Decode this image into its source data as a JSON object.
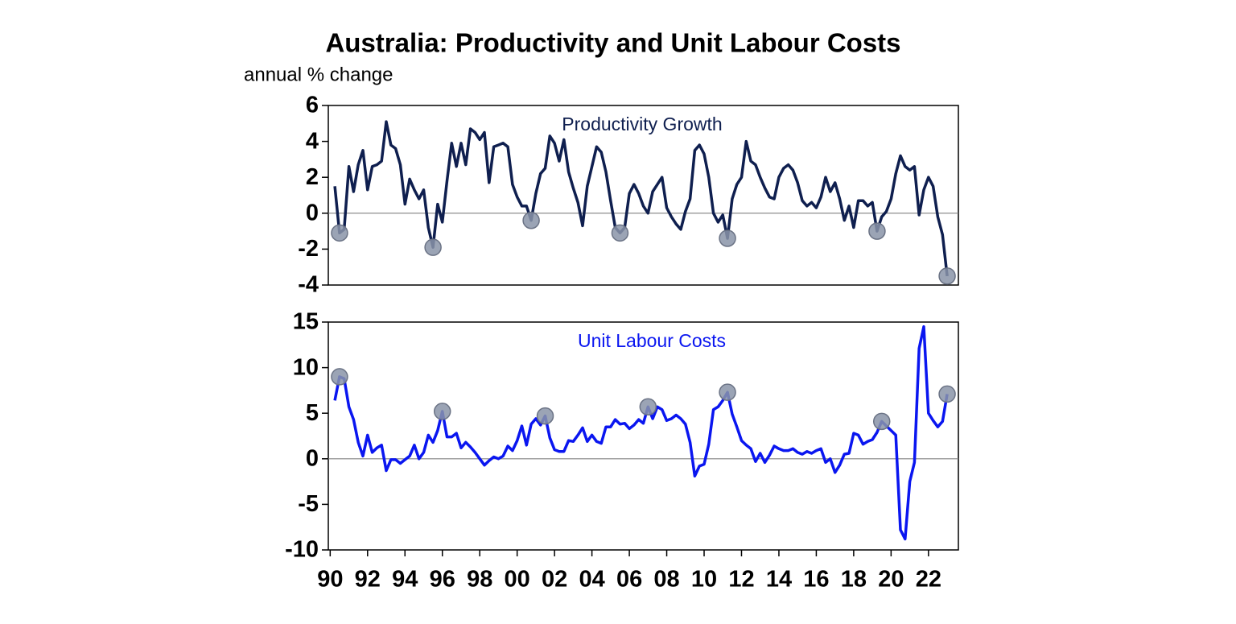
{
  "title": "Australia: Productivity and Unit Labour Costs",
  "subtitle": "annual % change",
  "chart_data": [
    {
      "type": "line",
      "annotation": "Productivity Growth",
      "xlim": [
        1989.9,
        2023.6
      ],
      "ylim": [
        -4,
        6
      ],
      "yticks": [
        -4,
        -2,
        0,
        2,
        4,
        6
      ],
      "zero_line": true,
      "x": [
        1990.25,
        1990.5,
        1990.75,
        1991,
        1991.25,
        1991.5,
        1991.75,
        1992,
        1992.25,
        1992.5,
        1992.75,
        1993,
        1993.25,
        1993.5,
        1993.75,
        1994,
        1994.25,
        1994.5,
        1994.75,
        1995,
        1995.25,
        1995.5,
        1995.75,
        1996,
        1996.25,
        1996.5,
        1996.75,
        1997,
        1997.25,
        1997.5,
        1997.75,
        1998,
        1998.25,
        1998.5,
        1998.75,
        1999,
        1999.25,
        1999.5,
        1999.75,
        2000,
        2000.25,
        2000.5,
        2000.75,
        2001,
        2001.25,
        2001.5,
        2001.75,
        2002,
        2002.25,
        2002.5,
        2002.75,
        2003,
        2003.25,
        2003.5,
        2003.75,
        2004,
        2004.25,
        2004.5,
        2004.75,
        2005,
        2005.25,
        2005.5,
        2005.75,
        2006,
        2006.25,
        2006.5,
        2006.75,
        2007,
        2007.25,
        2007.5,
        2007.75,
        2008,
        2008.25,
        2008.5,
        2008.75,
        2009,
        2009.25,
        2009.5,
        2009.75,
        2010,
        2010.25,
        2010.5,
        2010.75,
        2011,
        2011.25,
        2011.5,
        2011.75,
        2012,
        2012.25,
        2012.5,
        2012.75,
        2013,
        2013.25,
        2013.5,
        2013.75,
        2014,
        2014.25,
        2014.5,
        2014.75,
        2015,
        2015.25,
        2015.5,
        2015.75,
        2016,
        2016.25,
        2016.5,
        2016.75,
        2017,
        2017.25,
        2017.5,
        2017.75,
        2018,
        2018.25,
        2018.5,
        2018.75,
        2019,
        2019.25,
        2019.5,
        2019.75,
        2020,
        2020.25,
        2020.5,
        2020.75,
        2021,
        2021.25,
        2021.5,
        2021.75,
        2022,
        2022.25,
        2022.5,
        2022.75,
        2023
      ],
      "series": [
        {
          "name": "Productivity Growth",
          "color": "#0f1f4f",
          "values": [
            1.5,
            -1.1,
            -0.9,
            2.6,
            1.2,
            2.7,
            3.5,
            1.3,
            2.6,
            2.7,
            2.9,
            5.1,
            3.8,
            3.6,
            2.7,
            0.5,
            1.9,
            1.3,
            0.8,
            1.3,
            -0.8,
            -1.9,
            0.5,
            -0.5,
            1.8,
            3.9,
            2.6,
            3.9,
            2.7,
            4.7,
            4.5,
            4.1,
            4.5,
            1.7,
            3.7,
            3.8,
            3.9,
            3.7,
            1.6,
            0.9,
            0.4,
            0.4,
            -0.4,
            1.1,
            2.2,
            2.5,
            4.3,
            3.9,
            2.9,
            4.1,
            2.3,
            1.4,
            0.6,
            -0.7,
            1.5,
            2.6,
            3.7,
            3.4,
            2.3,
            0.7,
            -0.8,
            -1.1,
            -0.8,
            1.1,
            1.6,
            1.1,
            0.4,
            0,
            1.2,
            1.6,
            2.0,
            0.3,
            -0.2,
            -0.6,
            -0.9,
            0.1,
            0.8,
            3.5,
            3.8,
            3.3,
            2.0,
            0,
            -0.5,
            -0.1,
            -1.4,
            0.8,
            1.6,
            2.0,
            4.0,
            2.9,
            2.7,
            2.0,
            1.4,
            0.9,
            0.8,
            2.0,
            2.5,
            2.7,
            2.4,
            1.7,
            0.7,
            0.4,
            0.6,
            0.3,
            0.9,
            2.0,
            1.2,
            1.7,
            0.8,
            -0.4,
            0.4,
            -0.8,
            0.7,
            0.7,
            0.4,
            0.6,
            -1.0,
            -0.2,
            0.1,
            0.8,
            2.2,
            3.2,
            2.6,
            2.4,
            2.6,
            -0.1,
            1.3,
            2.0,
            1.5,
            -0.2,
            -1.2,
            -3.5
          ]
        }
      ],
      "highlight_x": [
        1990.5,
        1995.5,
        2000.75,
        2005.5,
        2011.25,
        2019.25,
        2023
      ],
      "highlight_color": "#8a94a8"
    },
    {
      "type": "line",
      "annotation": "Unit Labour Costs",
      "xlim": [
        1989.9,
        2023.6
      ],
      "ylim": [
        -10,
        15
      ],
      "yticks": [
        -10,
        -5,
        0,
        5,
        10,
        15
      ],
      "zero_line": true,
      "xticks": [
        {
          "value": 1990,
          "label": "90"
        },
        {
          "value": 1992,
          "label": "92"
        },
        {
          "value": 1994,
          "label": "94"
        },
        {
          "value": 1996,
          "label": "96"
        },
        {
          "value": 1998,
          "label": "98"
        },
        {
          "value": 2000,
          "label": "00"
        },
        {
          "value": 2002,
          "label": "02"
        },
        {
          "value": 2004,
          "label": "04"
        },
        {
          "value": 2006,
          "label": "06"
        },
        {
          "value": 2008,
          "label": "08"
        },
        {
          "value": 2010,
          "label": "10"
        },
        {
          "value": 2012,
          "label": "12"
        },
        {
          "value": 2014,
          "label": "14"
        },
        {
          "value": 2016,
          "label": "16"
        },
        {
          "value": 2018,
          "label": "18"
        },
        {
          "value": 2020,
          "label": "20"
        },
        {
          "value": 2022,
          "label": "22"
        }
      ],
      "x": [
        1990.25,
        1990.5,
        1990.75,
        1991,
        1991.25,
        1991.5,
        1991.75,
        1992,
        1992.25,
        1992.5,
        1992.75,
        1993,
        1993.25,
        1993.5,
        1993.75,
        1994,
        1994.25,
        1994.5,
        1994.75,
        1995,
        1995.25,
        1995.5,
        1995.75,
        1996,
        1996.25,
        1996.5,
        1996.75,
        1997,
        1997.25,
        1997.5,
        1997.75,
        1998,
        1998.25,
        1998.5,
        1998.75,
        1999,
        1999.25,
        1999.5,
        1999.75,
        2000,
        2000.25,
        2000.5,
        2000.75,
        2001,
        2001.25,
        2001.5,
        2001.75,
        2002,
        2002.25,
        2002.5,
        2002.75,
        2003,
        2003.25,
        2003.5,
        2003.75,
        2004,
        2004.25,
        2004.5,
        2004.75,
        2005,
        2005.25,
        2005.5,
        2005.75,
        2006,
        2006.25,
        2006.5,
        2006.75,
        2007,
        2007.25,
        2007.5,
        2007.75,
        2008,
        2008.25,
        2008.5,
        2008.75,
        2009,
        2009.25,
        2009.5,
        2009.75,
        2010,
        2010.25,
        2010.5,
        2010.75,
        2011,
        2011.25,
        2011.5,
        2011.75,
        2012,
        2012.25,
        2012.5,
        2012.75,
        2013,
        2013.25,
        2013.5,
        2013.75,
        2014,
        2014.25,
        2014.5,
        2014.75,
        2015,
        2015.25,
        2015.5,
        2015.75,
        2016,
        2016.25,
        2016.5,
        2016.75,
        2017,
        2017.25,
        2017.5,
        2017.75,
        2018,
        2018.25,
        2018.5,
        2018.75,
        2019,
        2019.25,
        2019.5,
        2019.75,
        2020,
        2020.25,
        2020.5,
        2020.75,
        2021,
        2021.25,
        2021.5,
        2021.75,
        2022,
        2022.25,
        2022.5,
        2022.75,
        2023
      ],
      "series": [
        {
          "name": "Unit Labour Costs",
          "color": "#0a16f0",
          "values": [
            6.4,
            9.0,
            8.8,
            5.7,
            4.3,
            1.8,
            0.3,
            2.6,
            0.7,
            1.2,
            1.5,
            -1.3,
            -0.1,
            -0.1,
            -0.5,
            -0.1,
            0.3,
            1.5,
            0,
            0.7,
            2.6,
            1.8,
            3.1,
            5.2,
            2.4,
            2.4,
            2.8,
            1.2,
            1.8,
            1.3,
            0.7,
            0,
            -0.7,
            -0.2,
            0.2,
            0,
            0.3,
            1.4,
            0.9,
            2.0,
            3.6,
            1.5,
            3.8,
            4.4,
            3.7,
            4.7,
            2.3,
            1.0,
            0.8,
            0.8,
            2.0,
            1.9,
            2.6,
            3.4,
            1.9,
            2.6,
            1.9,
            1.7,
            3.5,
            3.5,
            4.3,
            3.8,
            3.9,
            3.3,
            3.7,
            4.3,
            3.9,
            5.7,
            4.4,
            5.7,
            5.4,
            4.2,
            4.4,
            4.8,
            4.4,
            3.8,
            1.8,
            -1.9,
            -0.8,
            -0.6,
            1.6,
            5.4,
            5.7,
            6.4,
            7.3,
            4.9,
            3.5,
            2.0,
            1.5,
            1.1,
            -0.3,
            0.6,
            -0.4,
            0.4,
            1.4,
            1.1,
            0.9,
            0.9,
            1.1,
            0.7,
            0.5,
            0.8,
            0.6,
            0.9,
            1.1,
            -0.4,
            0,
            -1.5,
            -0.7,
            0.5,
            0.6,
            2.8,
            2.6,
            1.6,
            1.9,
            2.1,
            2.9,
            4.1,
            3.6,
            3.1,
            2.6,
            -7.8,
            -8.8,
            -2.5,
            -0.4,
            12.1,
            14.5,
            5.0,
            4.2,
            3.5,
            4.1,
            7.1
          ]
        }
      ],
      "highlight_x": [
        1990.5,
        1996,
        2001.5,
        2007,
        2011.25,
        2019.5,
        2023
      ],
      "highlight_color": "#8a94a8"
    }
  ]
}
